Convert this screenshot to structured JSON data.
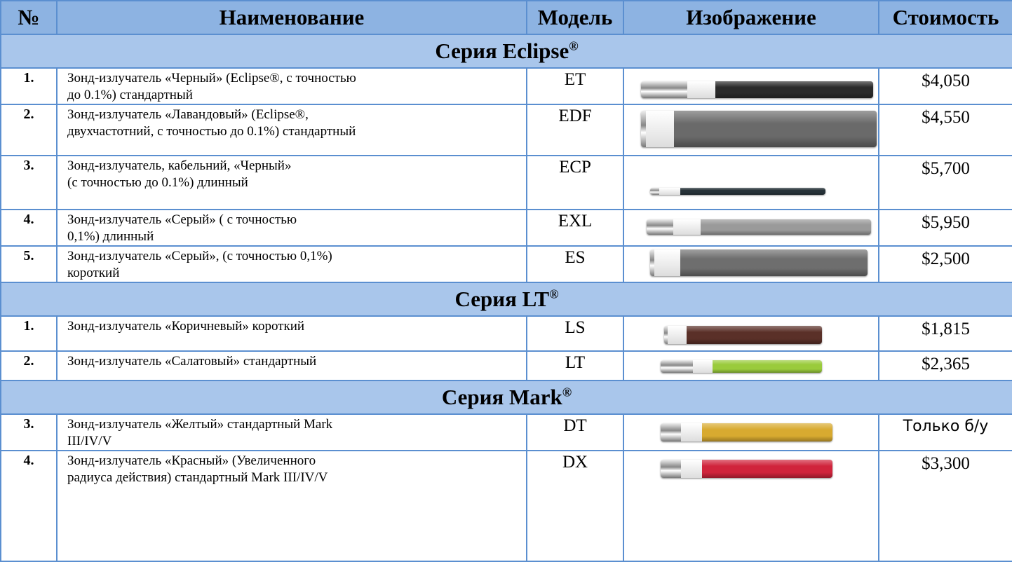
{
  "header": [
    "№",
    "Наименование",
    "Модель",
    "Изображение",
    "Стоимость"
  ],
  "sections": [
    {
      "title": "Серия Eclipse",
      "mark": "®",
      "rows": [
        {
          "num": "1.",
          "name": [
            "Зонд-излучатель «Черный» (Eclipse®, с точностью",
            "до 0.1%) стандартный"
          ],
          "model": "ET",
          "price": "$4,050"
        },
        {
          "num": "2.",
          "name": [
            "Зонд-излучатель «Лавандовый» (Eclipse®,",
            "двухчастотний, с точностью до 0.1%) стандартный"
          ],
          "model": "EDF",
          "price": "$4,550"
        },
        {
          "num": "3.",
          "name": [
            "Зонд-излучатель, кабельний, «Черный»",
            "(с точностью до 0.1%) длинный"
          ],
          "model": "ECP",
          "price": "$5,700"
        },
        {
          "num": "4.",
          "name": [
            "Зонд-излучатель «Серый» ( с точностью",
            "0,1%) длинный"
          ],
          "model": "EXL",
          "price": "$5,950"
        },
        {
          "num": "5.",
          "name": [
            "Зонд-излучатель «Серый», (с точностью 0,1%)",
            "короткий"
          ],
          "model": "ES",
          "price": "$2,500"
        }
      ]
    },
    {
      "title": "Серия LT",
      "mark": "®",
      "rows": [
        {
          "num": "1.",
          "name": [
            "Зонд-излучатель «Коричневый» короткий"
          ],
          "model": "LS",
          "price": "$1,815"
        },
        {
          "num": "2.",
          "name": [
            "Зонд-излучатель «Салатовый» стандартный"
          ],
          "model": "LT",
          "price": "$2,365"
        }
      ]
    },
    {
      "title": "Серия Mark",
      "mark": "®",
      "rows": [
        {
          "num": "3.",
          "name": [
            "Зонд-излучатель «Желтый» стандартный Mark",
            "III/IV/V"
          ],
          "model": "DT",
          "price": "Только б/у"
        },
        {
          "num": "4.",
          "name": [
            "Зонд-излучатель «Красный» (Увеличенного",
            "радиуса действия) стандартный Mark III/IV/V"
          ],
          "model": "DX",
          "price": "$3,300"
        }
      ]
    }
  ]
}
